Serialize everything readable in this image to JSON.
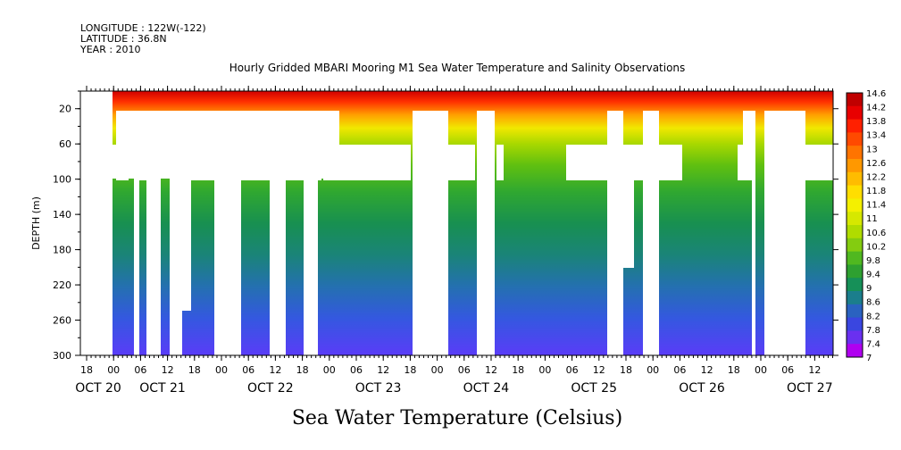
{
  "header": {
    "longitude": "LONGITUDE : 122W(-122)",
    "latitude": "LATITUDE : 36.8N",
    "year": "YEAR : 2010"
  },
  "chart_data": {
    "type": "heatmap",
    "title": "Hourly Gridded MBARI Mooring M1 Sea Water Temperature and Salinity Observations",
    "bottom_title": "Sea Water Temperature (Celsius)",
    "ylabel": "DEPTH (m)",
    "y_ticks": [
      "20",
      "60",
      "100",
      "140",
      "180",
      "220",
      "260",
      "300"
    ],
    "ylim": [
      300,
      0
    ],
    "x_ticks": [
      "18",
      "00",
      "06",
      "12",
      "18",
      "00",
      "06",
      "12",
      "18",
      "00",
      "06",
      "12",
      "18",
      "00",
      "06",
      "12",
      "18",
      "00",
      "06",
      "12",
      "18",
      "00",
      "06",
      "12",
      "18",
      "00",
      "06",
      "12"
    ],
    "day_labels": [
      "OCT 20",
      "OCT 21",
      "OCT 22",
      "OCT 23",
      "OCT 24",
      "OCT 25",
      "OCT 26",
      "OCT 27"
    ],
    "colorbar_labels": [
      "14.6",
      "14.2",
      "13.8",
      "13.4",
      "13",
      "12.6",
      "12.2",
      "11.8",
      "11.4",
      "11",
      "10.6",
      "10.2",
      "9.8",
      "9.4",
      "9",
      "8.6",
      "8.2",
      "7.8",
      "7.4",
      "7"
    ],
    "colorbar_colors": [
      "#c00000",
      "#e80000",
      "#ff2000",
      "#ff4a00",
      "#ff7400",
      "#ff9800",
      "#ffbc00",
      "#ffde00",
      "#f4f000",
      "#d6e800",
      "#b0dc00",
      "#84cc10",
      "#50b820",
      "#2ea030",
      "#169058",
      "#1b7e8c",
      "#2a62c0",
      "#3a46e0",
      "#6a30f0",
      "#b000f0"
    ],
    "temperature_range": [
      7,
      14.6
    ]
  }
}
